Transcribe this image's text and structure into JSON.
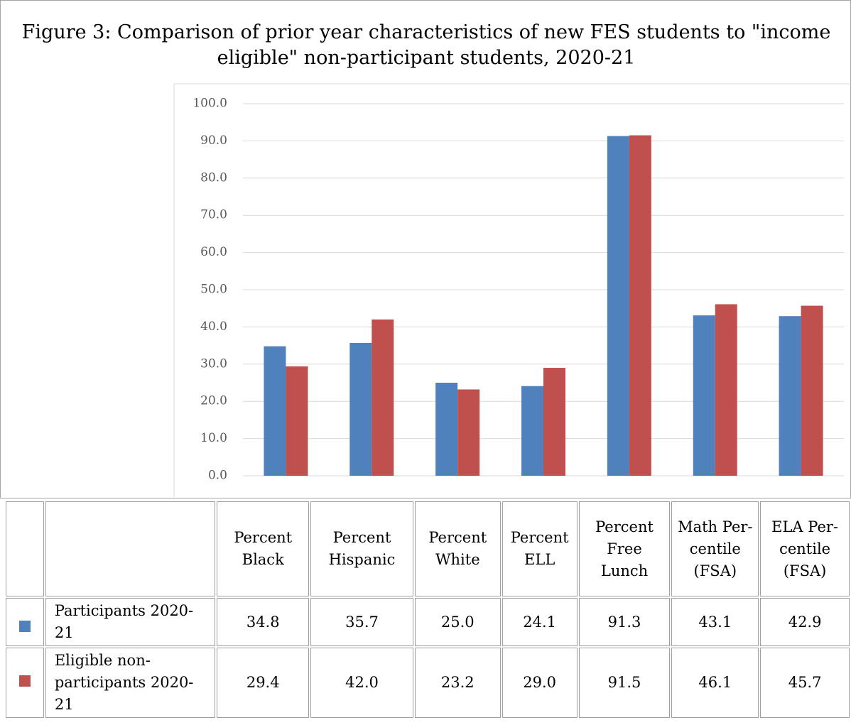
{
  "chart_data": {
    "type": "bar",
    "title": "Figure 3:  Comparison of prior year characteristics of new FES students to \"income eligible\" non-participant students, 2020-21",
    "categories": [
      "Percent Black",
      "Percent Hispanic",
      "Percent White",
      "Percent ELL",
      "Percent Free Lunch",
      "Math Per-centile (FSA)",
      "ELA Per-centile (FSA)"
    ],
    "series": [
      {
        "name": "Participants 2020-21",
        "color": "#4f81bd",
        "values": [
          34.8,
          35.7,
          25,
          24.1,
          91.3,
          43.1,
          42.9
        ],
        "value_labels": [
          "34.8",
          "35.7",
          "25.0",
          "24.1",
          "91.3",
          "43.1",
          "42.9"
        ]
      },
      {
        "name": "Eligible non-participants 2020-21",
        "color": "#c0504d",
        "values": [
          29.4,
          42,
          23.2,
          29,
          91.5,
          46.1,
          45.7
        ],
        "value_labels": [
          "29.4",
          "42.0",
          "23.2",
          "29.0",
          "91.5",
          "46.1",
          "45.7"
        ]
      }
    ],
    "ylim": [
      0,
      100
    ],
    "yticks": [
      {
        "value": 0,
        "label": "0.0"
      },
      {
        "value": 10,
        "label": "10.0"
      },
      {
        "value": 20,
        "label": "20.0"
      },
      {
        "value": 30,
        "label": "30.0"
      },
      {
        "value": 40,
        "label": "40.0"
      },
      {
        "value": 50,
        "label": "50.0"
      },
      {
        "value": 60,
        "label": "60.0"
      },
      {
        "value": 70,
        "label": "70.0"
      },
      {
        "value": 80,
        "label": "80.0"
      },
      {
        "value": 90,
        "label": "90.0"
      },
      {
        "value": 100,
        "label": "100.0"
      }
    ],
    "grid": true
  }
}
